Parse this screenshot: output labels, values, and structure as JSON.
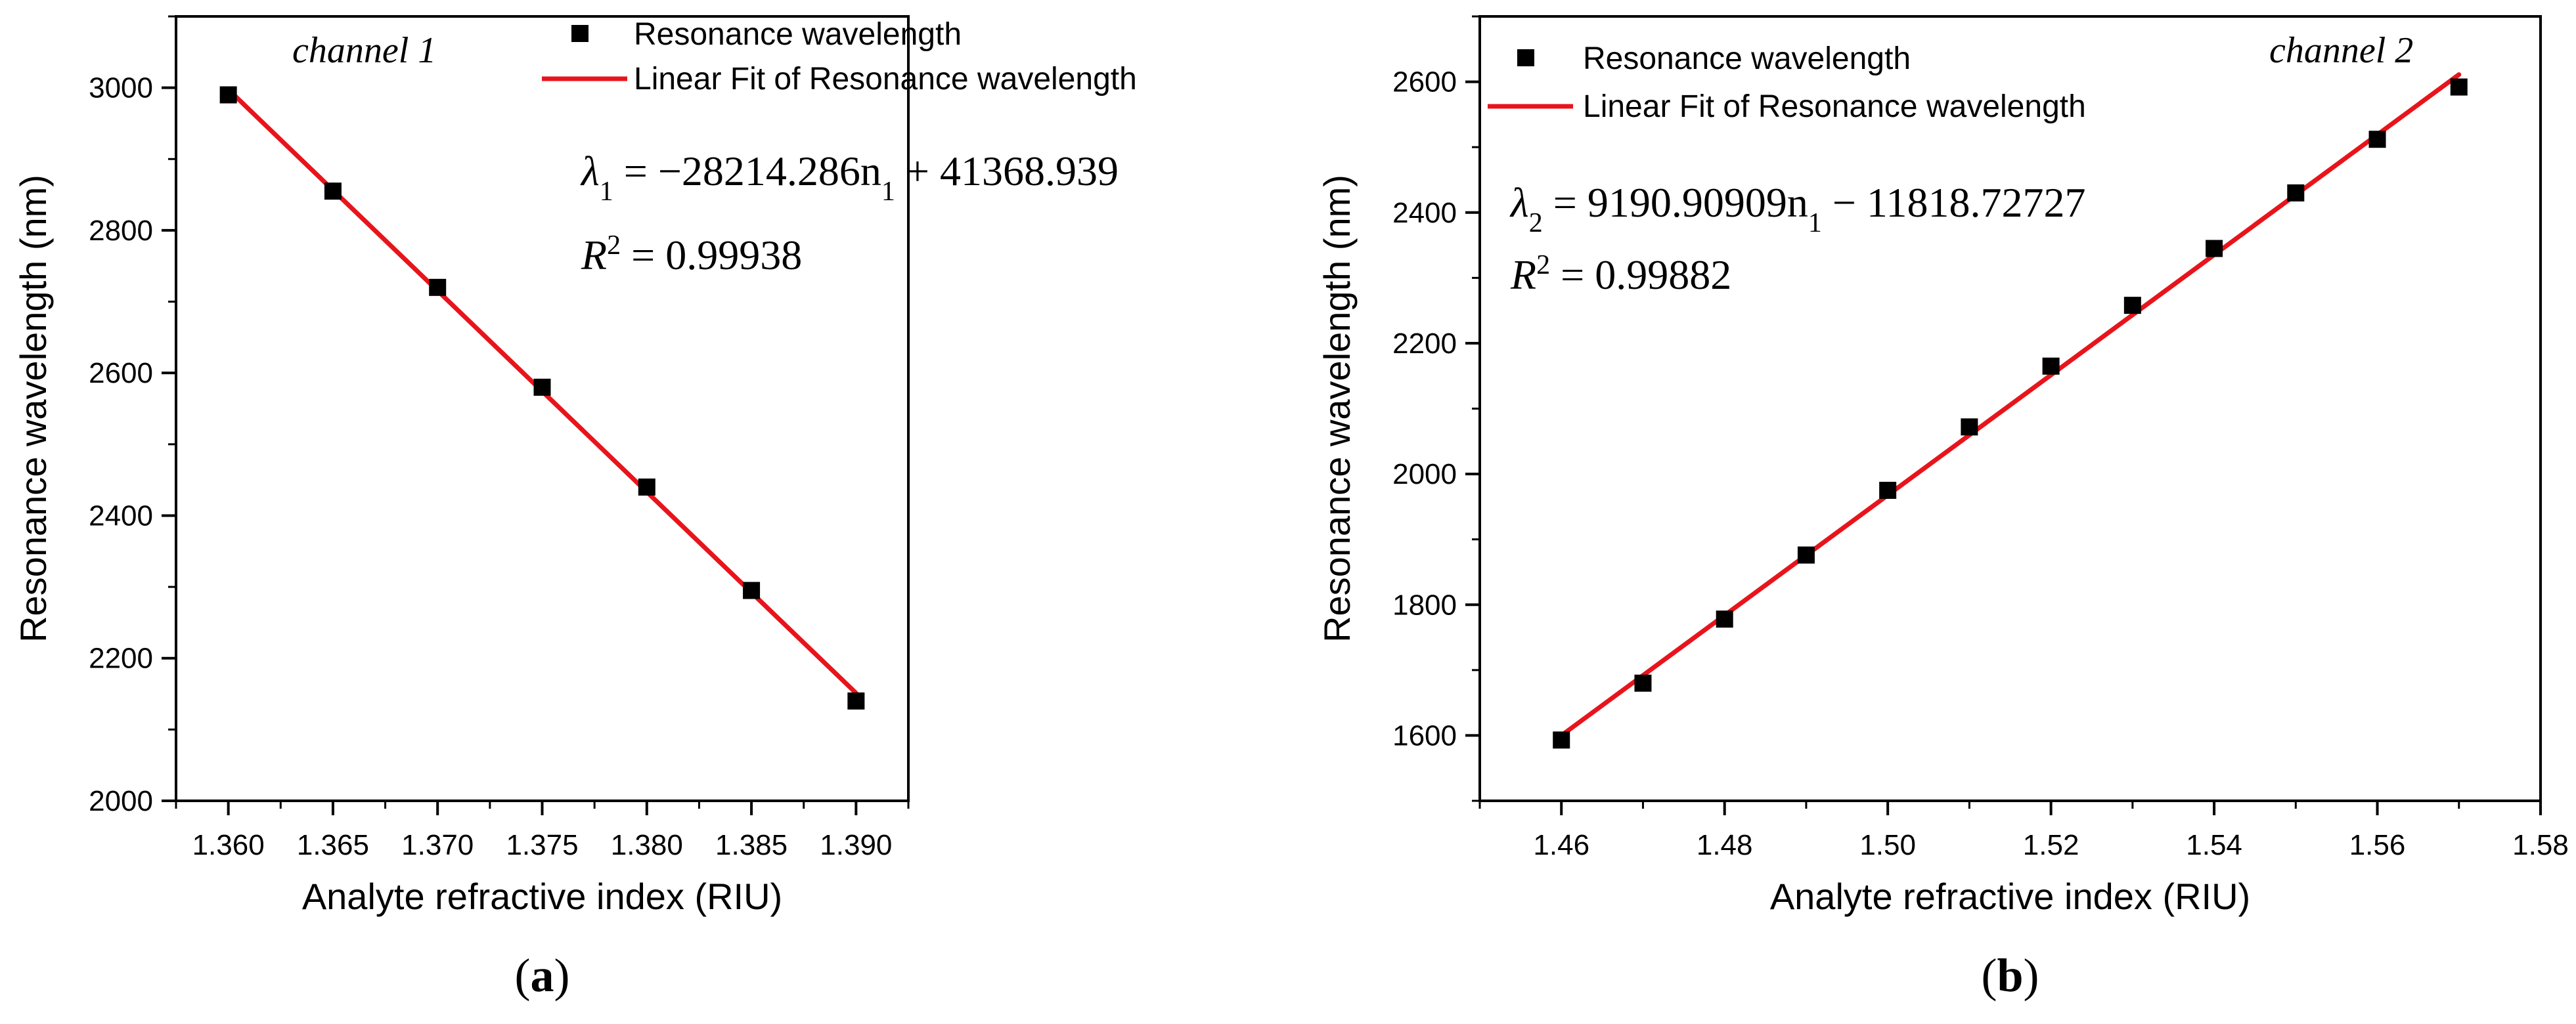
{
  "chart_data": [
    {
      "type": "scatter",
      "panel_label": "a",
      "channel_label": "channel 1",
      "xlabel": "Analyte refractive index (RIU)",
      "ylabel": "Resonance wavelength (nm)",
      "xlim": [
        1.3575,
        1.3925
      ],
      "ylim": [
        2000,
        3100
      ],
      "xticks": [
        1.36,
        1.365,
        1.37,
        1.375,
        1.38,
        1.385,
        1.39
      ],
      "xtick_labels": [
        "1.360",
        "1.365",
        "1.370",
        "1.375",
        "1.380",
        "1.385",
        "1.390"
      ],
      "yticks": [
        2000,
        2200,
        2400,
        2600,
        2800,
        3000
      ],
      "ytick_labels": [
        "2000",
        "2200",
        "2400",
        "2600",
        "2800",
        "3000"
      ],
      "series": [
        {
          "name": "Resonance wavelength",
          "kind": "markers",
          "color": "#000000",
          "x": [
            1.36,
            1.365,
            1.37,
            1.375,
            1.38,
            1.385,
            1.39
          ],
          "y": [
            2990,
            2855,
            2720,
            2580,
            2440,
            2295,
            2140
          ]
        },
        {
          "name": "Linear Fit of Resonance wavelength",
          "kind": "line",
          "color": "#e8141c",
          "slope": -28214.286,
          "intercept": 41368.939,
          "x_range": [
            1.36,
            1.39
          ]
        }
      ],
      "legend": {
        "position": "top-right",
        "entries": [
          "Resonance wavelength",
          "Linear Fit of Resonance wavelength"
        ]
      },
      "equation": {
        "lhs": "λ",
        "sub": "1",
        "rhs": " = −28214.286n",
        "rhs_sub": "1",
        "tail": " + 41368.939"
      },
      "r2": {
        "lhs": "R",
        "sup": "2",
        "rhs": " = 0.99938"
      }
    },
    {
      "type": "scatter",
      "panel_label": "b",
      "channel_label": "channel 2",
      "xlabel": "Analyte refractive index (RIU)",
      "ylabel": "Resonance wavelength (nm)",
      "xlim": [
        1.45,
        1.58
      ],
      "ylim": [
        1500,
        2700
      ],
      "xticks": [
        1.46,
        1.48,
        1.5,
        1.52,
        1.54,
        1.56,
        1.58
      ],
      "xtick_labels": [
        "1.46",
        "1.48",
        "1.50",
        "1.52",
        "1.54",
        "1.56",
        "1.58"
      ],
      "yticks": [
        1600,
        1800,
        2000,
        2200,
        2400,
        2600
      ],
      "ytick_labels": [
        "1600",
        "1800",
        "2000",
        "2200",
        "2400",
        "2600"
      ],
      "series": [
        {
          "name": "Resonance wavelength",
          "kind": "markers",
          "color": "#000000",
          "x": [
            1.46,
            1.47,
            1.48,
            1.49,
            1.5,
            1.51,
            1.52,
            1.53,
            1.54,
            1.55,
            1.56,
            1.57
          ],
          "y": [
            1593,
            1680,
            1778,
            1876,
            1975,
            2072,
            2165,
            2258,
            2345,
            2430,
            2512,
            2592
          ]
        },
        {
          "name": "Linear Fit of Resonance wavelength",
          "kind": "line",
          "color": "#e8141c",
          "slope": 9190.90909,
          "intercept": -11818.72727,
          "x_range": [
            1.46,
            1.57
          ]
        }
      ],
      "legend": {
        "position": "top-left",
        "entries": [
          "Resonance wavelength",
          "Linear Fit of Resonance wavelength"
        ]
      },
      "equation": {
        "lhs": "λ",
        "sub": "2",
        "rhs": " = 9190.90909n",
        "rhs_sub": "1",
        "tail": " − 11818.72727"
      },
      "r2": {
        "lhs": "R",
        "sup": "2",
        "rhs": " = 0.99882"
      }
    }
  ]
}
